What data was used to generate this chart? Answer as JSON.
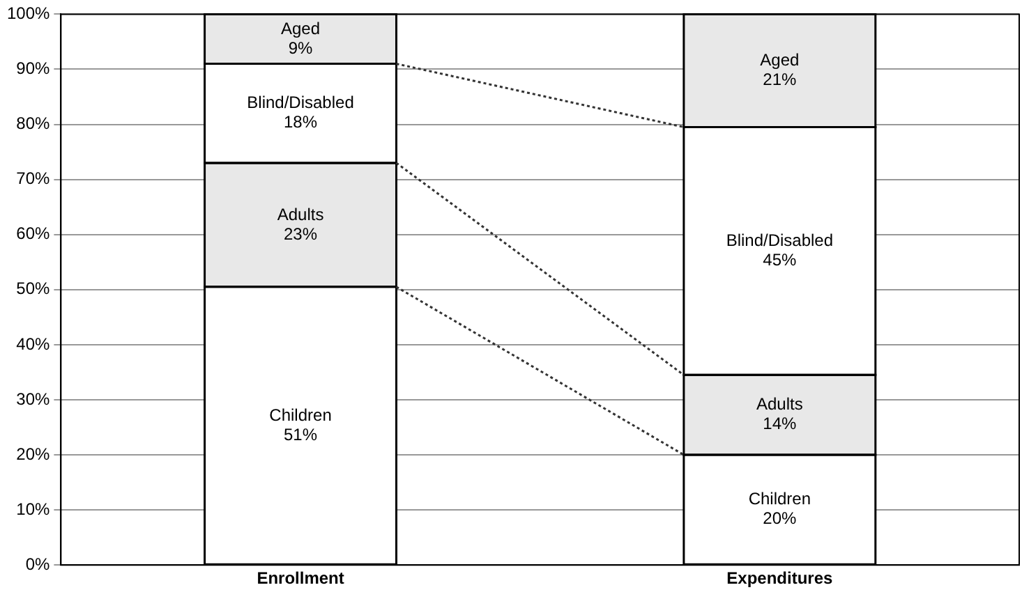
{
  "chart_data": {
    "type": "bar",
    "stacked": true,
    "categories": [
      "Enrollment",
      "Expenditures"
    ],
    "series": [
      {
        "name": "Children",
        "color": "#ffffff",
        "values": [
          50.5,
          20
        ],
        "value_labels": [
          "51%",
          "20%"
        ]
      },
      {
        "name": "Adults",
        "color": "#e8e8e8",
        "values": [
          22.5,
          14.5
        ],
        "value_labels": [
          "23%",
          "14%"
        ]
      },
      {
        "name": "Blind/Disabled",
        "color": "#ffffff",
        "values": [
          18,
          45
        ],
        "value_labels": [
          "18%",
          "45%"
        ]
      },
      {
        "name": "Aged",
        "color": "#e8e8e8",
        "values": [
          9,
          20.5
        ],
        "value_labels": [
          "9%",
          "21%"
        ]
      }
    ],
    "ylim": [
      0,
      100
    ],
    "yticks": [
      {
        "value": 0,
        "label": "0%"
      },
      {
        "value": 10,
        "label": "10%"
      },
      {
        "value": 20,
        "label": "20%"
      },
      {
        "value": 30,
        "label": "30%"
      },
      {
        "value": 40,
        "label": "40%"
      },
      {
        "value": 50,
        "label": "50%"
      },
      {
        "value": 60,
        "label": "60%"
      },
      {
        "value": 70,
        "label": "70%"
      },
      {
        "value": 80,
        "label": "80%"
      },
      {
        "value": 90,
        "label": "90%"
      },
      {
        "value": 100,
        "label": "100%"
      }
    ],
    "grid": "y",
    "legend": false
  }
}
